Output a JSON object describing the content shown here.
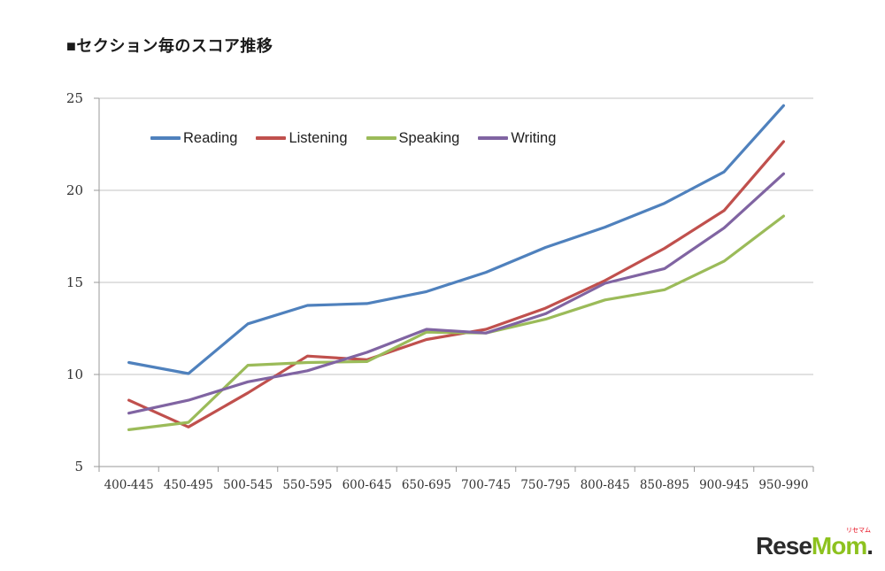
{
  "title": "■セクション毎のスコア推移",
  "chart_data": {
    "type": "line",
    "title": "■セクション毎のスコア推移",
    "xlabel": "",
    "ylabel": "",
    "categories": [
      "400-445",
      "450-495",
      "500-545",
      "550-595",
      "600-645",
      "650-695",
      "700-745",
      "750-795",
      "800-845",
      "850-895",
      "900-945",
      "950-990"
    ],
    "series": [
      {
        "name": "Reading",
        "color": "#4F81BD",
        "values": [
          10.65,
          10.05,
          12.75,
          13.75,
          13.85,
          14.5,
          15.55,
          16.9,
          18.0,
          19.3,
          21.0,
          24.6
        ]
      },
      {
        "name": "Listening",
        "color": "#C0504D",
        "values": [
          8.6,
          7.15,
          9.0,
          11.0,
          10.8,
          11.9,
          12.45,
          13.6,
          15.1,
          16.85,
          18.9,
          22.65
        ]
      },
      {
        "name": "Speaking",
        "color": "#9BBB59",
        "values": [
          7.0,
          7.4,
          10.5,
          10.65,
          10.7,
          12.3,
          12.25,
          13.0,
          14.05,
          14.6,
          16.15,
          18.6
        ]
      },
      {
        "name": "Writing",
        "color": "#8064A2",
        "values": [
          7.9,
          8.6,
          9.6,
          10.2,
          11.2,
          12.45,
          12.25,
          13.3,
          14.95,
          15.75,
          17.95,
          20.9
        ]
      }
    ],
    "ylim": [
      5,
      25
    ],
    "yticks": [
      5,
      10,
      15,
      20,
      25
    ],
    "grid": true,
    "legend_position": "top-inside",
    "colors": {
      "grid": "#c3c3c3",
      "axis": "#9a9a9a",
      "tick_label": "#333333"
    }
  },
  "watermark": {
    "part1": "Rese",
    "part2": "Mom",
    "dot": ".",
    "ruby": "リセマム",
    "color_main": "#2b2b2b",
    "color_accent": "#8dc21f",
    "color_ruby": "#e60012"
  }
}
